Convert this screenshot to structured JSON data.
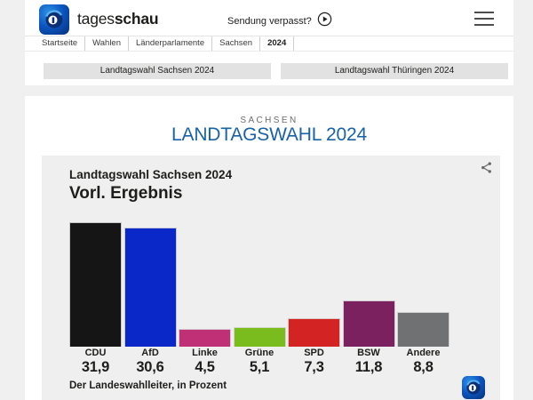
{
  "header": {
    "brand": {
      "regular": "tages",
      "bold": "schau"
    },
    "watch_label": "Sendung verpasst?",
    "breadcrumb": [
      "Startseite",
      "Wahlen",
      "Länderparlamente",
      "Sachsen",
      "2024"
    ]
  },
  "nav_buttons": [
    {
      "label": "Landtagswahl Sachsen 2024"
    },
    {
      "label": "Landtagswahl Thüringen 2024"
    }
  ],
  "main": {
    "kicker": "SACHSEN",
    "title": "LANDTAGSWAHL 2024"
  },
  "chart_data": {
    "type": "bar",
    "title": "Landtagswahl Sachsen 2024",
    "subtitle": "Vorl. Ergebnis",
    "categories": [
      "CDU",
      "AfD",
      "Linke",
      "Grüne",
      "SPD",
      "BSW",
      "Andere"
    ],
    "values": [
      31.9,
      30.6,
      4.5,
      5.1,
      7.3,
      11.8,
      8.8
    ],
    "value_labels": [
      "31,9",
      "30,6",
      "4,5",
      "5,1",
      "7,3",
      "11,8",
      "8,8"
    ],
    "colors": [
      "#151515",
      "#0a28c8",
      "#bf3076",
      "#7abb1e",
      "#d32322",
      "#7c2160",
      "#707173"
    ],
    "source": "Der Landeswahlleiter, in Prozent",
    "xlabel": "",
    "ylabel": "Prozent",
    "ylim": [
      0,
      32
    ],
    "grid": false,
    "legend": "none"
  },
  "icons": {
    "logo": "tagesschau-globe-icon",
    "play": "play-circle-icon",
    "menu": "hamburger-menu-icon",
    "share": "share-nodes-icon"
  },
  "colors": {
    "accent_blue": "#1862a8",
    "page_bg": "#f0f0f0",
    "card_bg": "#efefef",
    "button_bg": "#e2e2e2"
  }
}
